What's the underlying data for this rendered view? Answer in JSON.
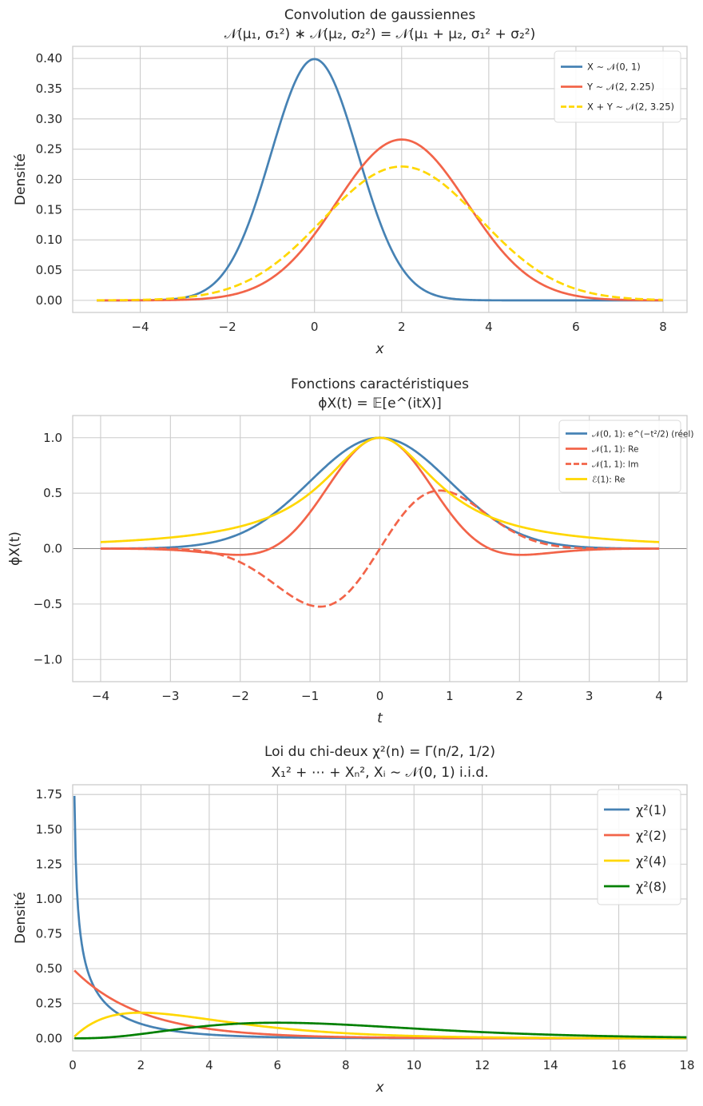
{
  "chart_data": [
    {
      "type": "line",
      "title": "Convolution de gaussiennes",
      "subtitle": "𝒩(μ₁, σ₁²) ∗ 𝒩(μ₂, σ₂²) = 𝒩(μ₁ + μ₂, σ₁² + σ₂²)",
      "xlabel": "x",
      "ylabel": "Densité",
      "xlim": [
        -5.55,
        8.55
      ],
      "ylim": [
        -0.02,
        0.42
      ],
      "grid": true,
      "legend_position": "top-right",
      "x_ticks": [
        -4,
        -2,
        0,
        2,
        4,
        6,
        8
      ],
      "x_tick_labels": [
        "−4",
        "−2",
        "0",
        "2",
        "4",
        "6",
        "8"
      ],
      "y_ticks": [
        0,
        0.05,
        0.1,
        0.15,
        0.2,
        0.25,
        0.3,
        0.35,
        0.4
      ],
      "y_tick_labels": [
        "0.00",
        "0.05",
        "0.10",
        "0.15",
        "0.20",
        "0.25",
        "0.30",
        "0.35",
        "0.40"
      ],
      "x_range": [
        -5,
        8
      ],
      "series": [
        {
          "name": "X ∼ 𝒩(0, 1)",
          "kind": "normal",
          "mu": 0,
          "var": 1,
          "color": "#4682b4",
          "dash": "solid"
        },
        {
          "name": "Y ∼ 𝒩(2, 2.25)",
          "kind": "normal",
          "mu": 2,
          "var": 2.25,
          "color": "#f26449",
          "dash": "solid"
        },
        {
          "name": "X + Y ∼ 𝒩(2, 3.25)",
          "kind": "normal",
          "mu": 2,
          "var": 3.25,
          "color": "#ffd700",
          "dash": "dashed"
        }
      ]
    },
    {
      "type": "line",
      "title": "Fonctions caractéristiques",
      "subtitle": "ϕX(t) = 𝔼[e^(itX)]",
      "xlabel": "t",
      "ylabel": "ϕX(t)",
      "xlim": [
        -4.4,
        4.4
      ],
      "ylim": [
        -1.2,
        1.2
      ],
      "grid": true,
      "legend_position": "top-right",
      "x_ticks": [
        -4,
        -3,
        -2,
        -1,
        0,
        1,
        2,
        3,
        4
      ],
      "x_tick_labels": [
        "−4",
        "−3",
        "−2",
        "−1",
        "0",
        "1",
        "2",
        "3",
        "4"
      ],
      "y_ticks": [
        -1,
        -0.5,
        0,
        0.5,
        1
      ],
      "y_tick_labels": [
        "−1.0",
        "−0.5",
        "0.0",
        "0.5",
        "1.0"
      ],
      "x_range": [
        -4,
        4
      ],
      "zero_line": true,
      "series": [
        {
          "name": "𝒩(0, 1): e^(−t²/2) (réel)",
          "kind": "cf_normal_std",
          "color": "#4682b4",
          "dash": "solid"
        },
        {
          "name": "𝒩(1, 1): Re",
          "kind": "cf_normal_re",
          "mu": 1,
          "var": 1,
          "color": "#f26449",
          "dash": "solid"
        },
        {
          "name": "𝒩(1, 1): Im",
          "kind": "cf_normal_im",
          "mu": 1,
          "var": 1,
          "color": "#f26449",
          "dash": "dashed"
        },
        {
          "name": "ℰ(1): Re",
          "kind": "cf_exp_re",
          "lambda": 1,
          "color": "#ffd700",
          "dash": "solid"
        }
      ]
    },
    {
      "type": "line",
      "title": "Loi du chi-deux χ²(n) = Γ(n/2, 1/2)",
      "subtitle": "X₁² + ⋯ + Xₙ², Xᵢ ∼ 𝒩(0, 1) i.i.d.",
      "xlabel": "x",
      "ylabel": "Densité",
      "xlim": [
        0,
        18
      ],
      "ylim": [
        -0.09,
        1.82
      ],
      "grid": true,
      "legend_position": "top-right",
      "x_ticks": [
        0,
        2,
        4,
        6,
        8,
        10,
        12,
        14,
        16,
        18
      ],
      "x_tick_labels": [
        "0",
        "2",
        "4",
        "6",
        "8",
        "10",
        "12",
        "14",
        "16",
        "18"
      ],
      "y_ticks": [
        0,
        0.25,
        0.5,
        0.75,
        1,
        1.25,
        1.5,
        1.75
      ],
      "y_tick_labels": [
        "0.00",
        "0.25",
        "0.50",
        "0.75",
        "1.00",
        "1.25",
        "1.50",
        "1.75"
      ],
      "x_range": [
        0.05,
        18
      ],
      "series": [
        {
          "name": "χ²(1)",
          "kind": "chi2",
          "k": 1,
          "color": "#4682b4",
          "dash": "solid"
        },
        {
          "name": "χ²(2)",
          "kind": "chi2",
          "k": 2,
          "color": "#f26449",
          "dash": "solid"
        },
        {
          "name": "χ²(4)",
          "kind": "chi2",
          "k": 4,
          "color": "#ffd700",
          "dash": "solid"
        },
        {
          "name": "χ²(8)",
          "kind": "chi2",
          "k": 8,
          "color": "#008000",
          "dash": "solid"
        }
      ]
    }
  ]
}
